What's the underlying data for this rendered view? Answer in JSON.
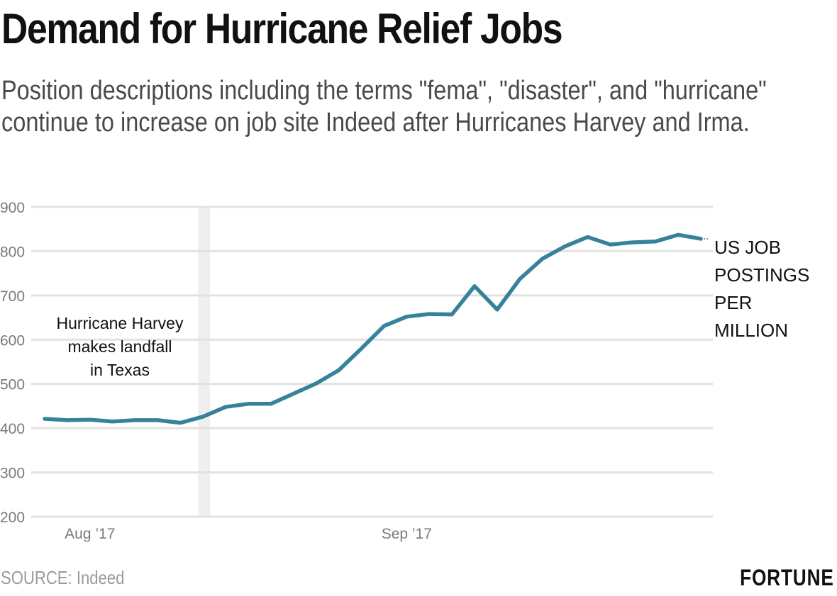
{
  "header": {
    "title": "Demand for Hurricane Relief Jobs",
    "subtitle": "Position descriptions including the terms \"fema\", \"disaster\", and \"hurricane\" continue to increase on job site Indeed after Hurricanes Harvey and Irma."
  },
  "footer": {
    "source": "SOURCE: Indeed",
    "brand": "FORTUNE"
  },
  "colors": {
    "line": "#37829b",
    "grid": "#e2e2e2",
    "highlight_band": "#efefef"
  },
  "chart_data": {
    "type": "line",
    "title": "Demand for Hurricane Relief Jobs",
    "xlabel": "",
    "ylabel": "US JOB POSTINGS PER MILLION",
    "ylim": [
      200,
      900
    ],
    "yticks": [
      200,
      300,
      400,
      500,
      600,
      700,
      800,
      900
    ],
    "grid": true,
    "x_index_range": [
      0,
      29
    ],
    "xticks": [
      {
        "label": "Aug ’17",
        "index": 2
      },
      {
        "label": "Sep ’17",
        "index": 16
      }
    ],
    "series": [
      {
        "name": "US JOB POSTINGS PER MILLION",
        "label_lines": [
          "US JOB",
          "POSTINGS",
          "PER",
          "MILLION"
        ],
        "values": [
          421,
          418,
          419,
          415,
          418,
          418,
          412,
          426,
          448,
          455,
          455,
          478,
          501,
          531,
          580,
          631,
          652,
          658,
          657,
          721,
          668,
          737,
          783,
          811,
          832,
          815,
          820,
          822,
          837,
          828
        ]
      }
    ],
    "annotations": [
      {
        "text_lines": [
          "Hurricane Harvey",
          "makes landfall",
          "in Texas"
        ],
        "band_index": [
          7.0,
          7.5
        ]
      }
    ]
  }
}
